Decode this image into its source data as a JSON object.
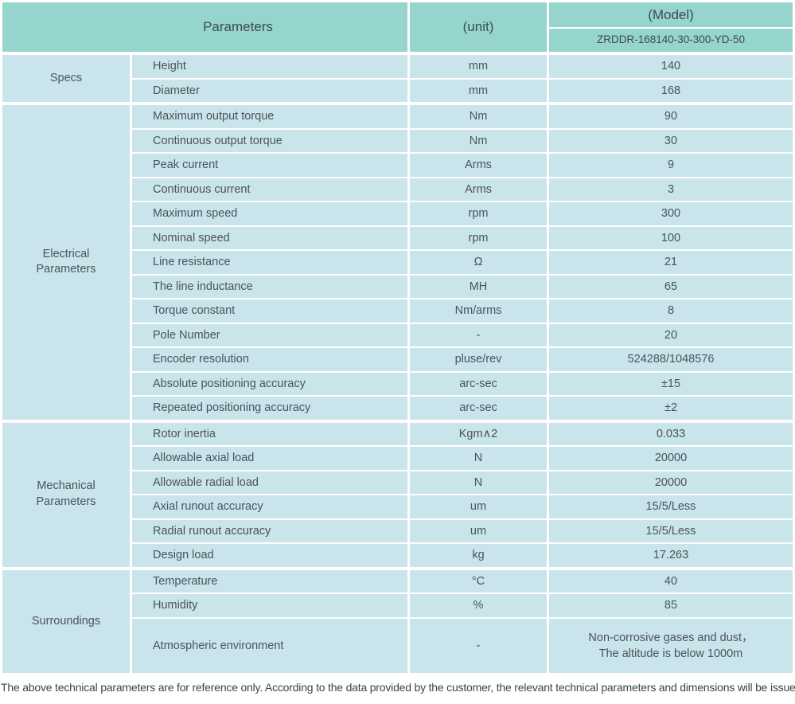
{
  "header": {
    "parameters_label": "Parameters",
    "unit_label": "(unit)",
    "model_label": "(Model)",
    "model_number": "ZRDDR-168140-30-300-YD-50"
  },
  "sections": [
    {
      "category": "Specs",
      "rows": [
        {
          "param": "Height",
          "unit": "mm",
          "value": "140"
        },
        {
          "param": "Diameter",
          "unit": "mm",
          "value": "168"
        }
      ]
    },
    {
      "category": "Electrical Parameters",
      "rows": [
        {
          "param": "Maximum output torque",
          "unit": "Nm",
          "value": "90"
        },
        {
          "param": "Continuous output torque",
          "unit": "Nm",
          "value": "30"
        },
        {
          "param": "Peak current",
          "unit": "Arms",
          "value": "9"
        },
        {
          "param": "Continuous current",
          "unit": "Arms",
          "value": "3"
        },
        {
          "param": "Maximum speed",
          "unit": "rpm",
          "value": "300"
        },
        {
          "param": "Nominal speed",
          "unit": "rpm",
          "value": "100"
        },
        {
          "param": "Line resistance",
          "unit": "Ω",
          "value": "21"
        },
        {
          "param": "The line inductance",
          "unit": "MH",
          "value": "65"
        },
        {
          "param": "Torque constant",
          "unit": "Nm/arms",
          "value": "8"
        },
        {
          "param": "Pole Number",
          "unit": "-",
          "value": "20"
        },
        {
          "param": "Encoder resolution",
          "unit": "pluse/rev",
          "value": "524288/1048576"
        },
        {
          "param": "Absolute positioning accuracy",
          "unit": "arc-sec",
          "value": "±15"
        },
        {
          "param": "Repeated positioning accuracy",
          "unit": "arc-sec",
          "value": "±2"
        }
      ]
    },
    {
      "category": "Mechanical Parameters",
      "rows": [
        {
          "param": "Rotor inertia",
          "unit": "Kgm∧2",
          "value": "0.033"
        },
        {
          "param": "Allowable axial load",
          "unit": "N",
          "value": "20000"
        },
        {
          "param": "Allowable radial load",
          "unit": "N",
          "value": "20000"
        },
        {
          "param": "Axial runout accuracy",
          "unit": "um",
          "value": "15/5/Less"
        },
        {
          "param": "Radial runout accuracy",
          "unit": "um",
          "value": "15/5/Less"
        },
        {
          "param": "Design load",
          "unit": "kg",
          "value": "17.263"
        }
      ]
    },
    {
      "category": "Surroundings",
      "rows": [
        {
          "param": "Temperature",
          "unit": "°C",
          "value": "40"
        },
        {
          "param": "Humidity",
          "unit": "%",
          "value": "85"
        },
        {
          "param": "Atmospheric environment",
          "unit": "-",
          "value": "Non-corrosive gases and dust，\nThe altitude is below 1000m"
        }
      ]
    }
  ],
  "footer": {
    "note": "The above technical parameters are for reference only. According to the data provided by the customer, the relevant technical parameters and dimensions will be issued."
  },
  "colors": {
    "header_bg": "#96d4ce",
    "row_bg": "#c9e4ea",
    "border": "#ffffff",
    "header_text": "#3e4a51",
    "body_text": "#4a545b"
  }
}
